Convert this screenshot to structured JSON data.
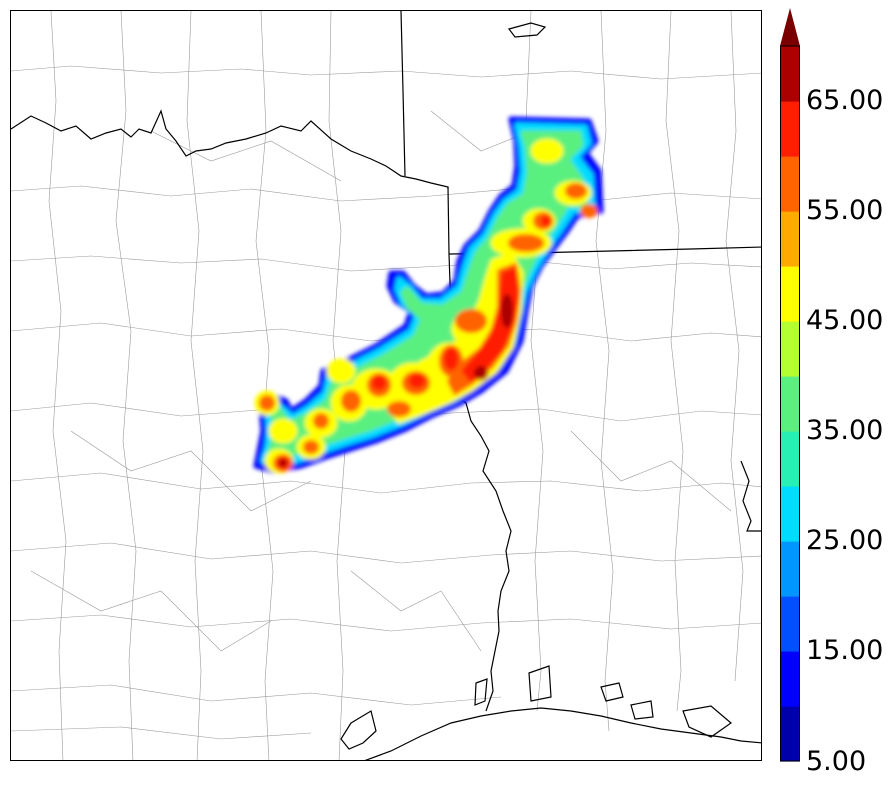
{
  "colorbar": {
    "min": 5,
    "max": 70,
    "step": 5,
    "extend": "max",
    "levels": [
      5,
      10,
      15,
      20,
      25,
      30,
      35,
      40,
      45,
      50,
      55,
      60,
      65,
      70
    ],
    "colors": [
      "#0000aa",
      "#0000ff",
      "#0050ff",
      "#0096ff",
      "#00dcff",
      "#28f0b4",
      "#5af080",
      "#b4ff32",
      "#ffff00",
      "#ffaa00",
      "#ff6400",
      "#ff1e00",
      "#aa0000"
    ],
    "extend_color": "#7a0000",
    "tick_labels": [
      "5.00",
      "15.00",
      "25.00",
      "35.00",
      "45.00",
      "55.00",
      "65.00"
    ]
  },
  "map_colors": {
    "boundary": "#000000",
    "county_lines": "#9a9a9a"
  }
}
